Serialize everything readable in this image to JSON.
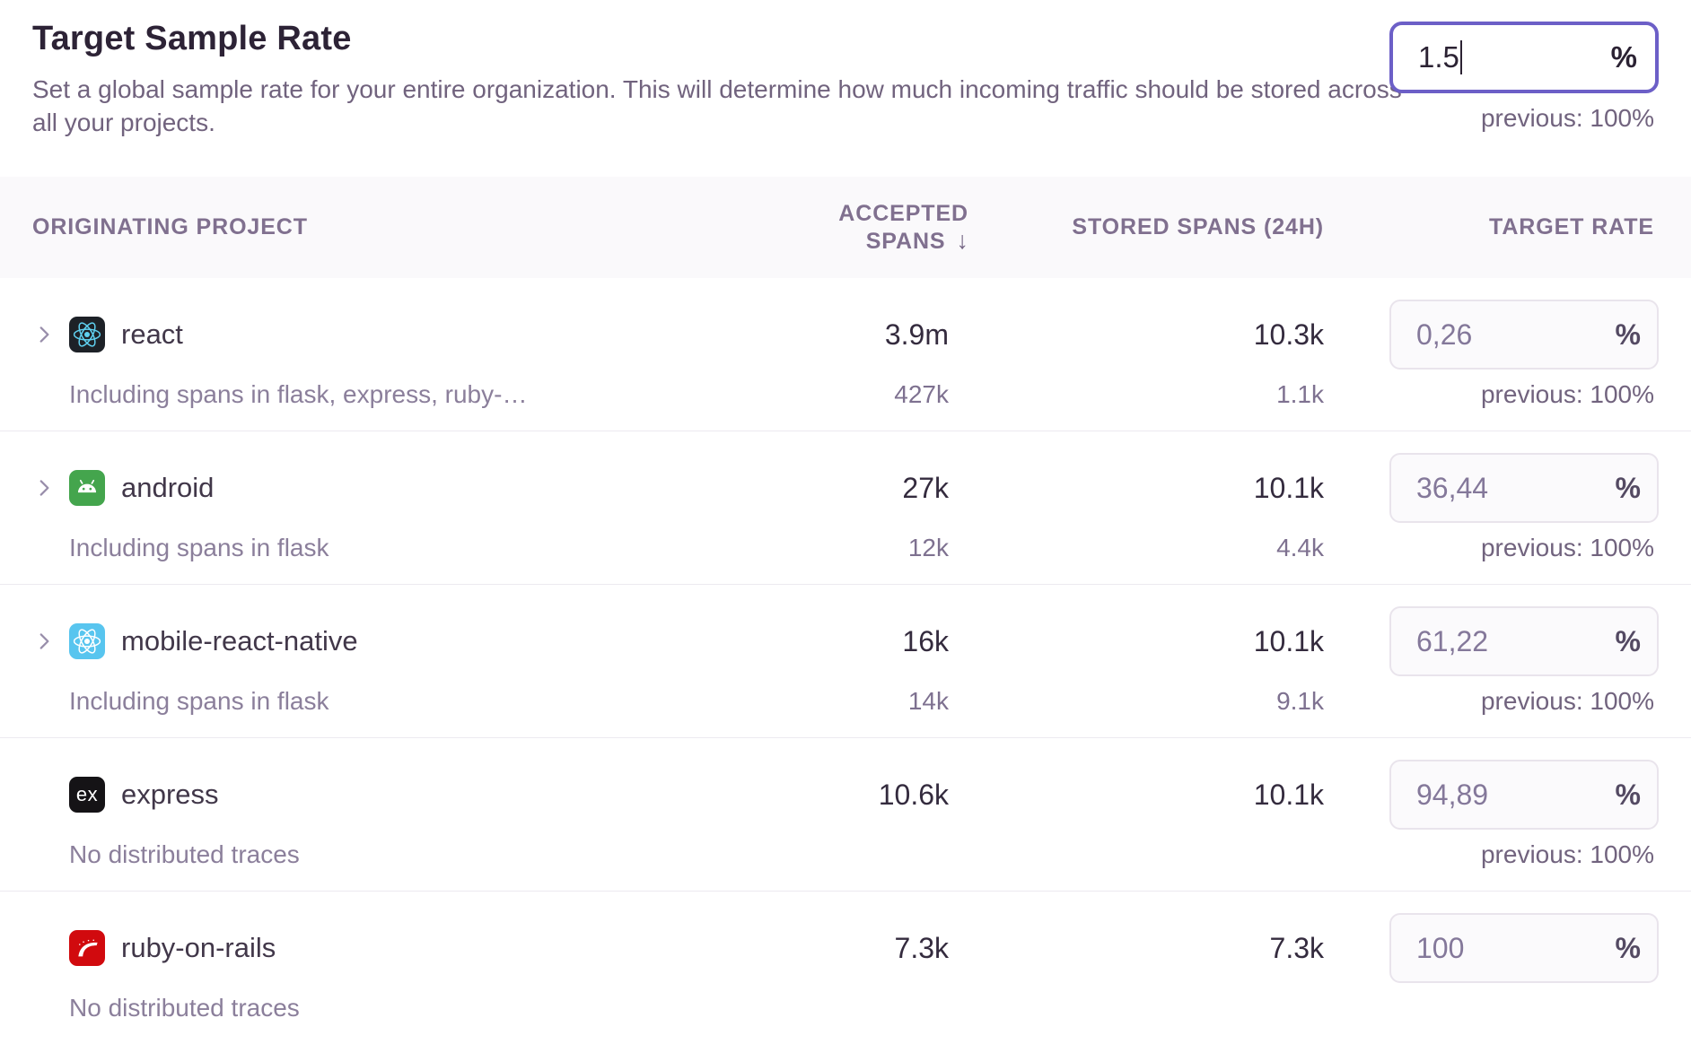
{
  "header": {
    "title": "Target Sample Rate",
    "description": "Set a global sample rate for your entire organization. This will determine how much incoming traffic should be stored across all your projects.",
    "rate_input": {
      "value": "1.5",
      "unit": "%"
    },
    "previous": "previous: 100%"
  },
  "table": {
    "columns": {
      "project": "ORIGINATING PROJECT",
      "accepted": "ACCEPTED SPANS",
      "stored": "STORED SPANS (24H)",
      "target": "TARGET RATE"
    },
    "sort_icon": "↓",
    "rows": [
      {
        "name": "react",
        "platform": "react-dark",
        "expandable": true,
        "subtext": "Including spans in flask, express, ruby-…",
        "accepted": "3.9m",
        "accepted_sub": "427k",
        "stored": "10.3k",
        "stored_sub": "1.1k",
        "rate": "0,26",
        "unit": "%",
        "previous": "previous: 100%"
      },
      {
        "name": "android",
        "platform": "android",
        "expandable": true,
        "subtext": "Including spans in flask",
        "accepted": "27k",
        "accepted_sub": "12k",
        "stored": "10.1k",
        "stored_sub": "4.4k",
        "rate": "36,44",
        "unit": "%",
        "previous": "previous: 100%"
      },
      {
        "name": "mobile-react-native",
        "platform": "react-light",
        "expandable": true,
        "subtext": "Including spans in flask",
        "accepted": "16k",
        "accepted_sub": "14k",
        "stored": "10.1k",
        "stored_sub": "9.1k",
        "rate": "61,22",
        "unit": "%",
        "previous": "previous: 100%"
      },
      {
        "name": "express",
        "platform": "express",
        "expandable": false,
        "subtext": "No distributed traces",
        "accepted": "10.6k",
        "stored": "10.1k",
        "rate": "94,89",
        "unit": "%",
        "previous": "previous: 100%"
      },
      {
        "name": "ruby-on-rails",
        "platform": "rails",
        "expandable": false,
        "subtext": "No distributed traces",
        "accepted": "7.3k",
        "stored": "7.3k",
        "rate": "100",
        "unit": "%",
        "previous": ""
      }
    ]
  },
  "colors": {
    "accent": "#6c5fc7",
    "react_dark_bg": "#1d2127",
    "react_logo": "#5fd0f0",
    "android_bg": "#44a54d",
    "react_light_bg": "#58c5ef",
    "express_bg": "#151316",
    "rails_bg": "#d10a0e"
  },
  "icon_names": {
    "expand": "chevron-right-icon",
    "sort": "sort-descending-icon"
  }
}
